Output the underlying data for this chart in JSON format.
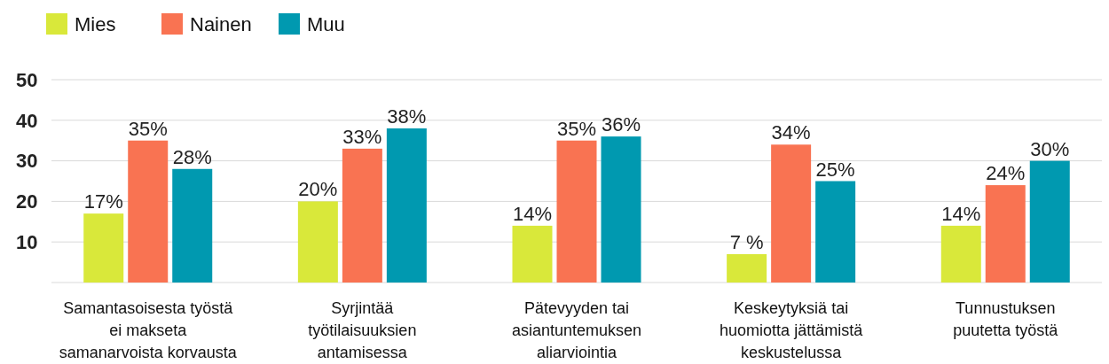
{
  "chart_data": {
    "type": "bar",
    "categories": [
      "Samantasoisesta työstä\nei makseta\nsamanarvoista korvausta",
      "Syrjintää\ntyötilaisuuksien\nantamisessa",
      "Pätevyyden tai\nasiantuntemuksen\naliarviointia",
      "Keskeytyksiä tai\nhuomiotta jättämistä\nkeskustelussa",
      "Tunnustuksen\npuutetta työstä"
    ],
    "series": [
      {
        "name": "Mies",
        "color": "#d9e83a",
        "values": [
          17,
          20,
          14,
          7,
          14
        ],
        "value_labels": [
          "17%",
          "20%",
          "14%",
          "7 %",
          "14%"
        ]
      },
      {
        "name": "Nainen",
        "color": "#f97352",
        "values": [
          35,
          33,
          35,
          34,
          24
        ],
        "value_labels": [
          "35%",
          "33%",
          "35%",
          "34%",
          "24%"
        ]
      },
      {
        "name": "Muu",
        "color": "#0099b0",
        "values": [
          28,
          38,
          36,
          25,
          30
        ],
        "value_labels": [
          "28%",
          "38%",
          "36%",
          "25%",
          "30%"
        ]
      }
    ],
    "ylim": [
      0,
      50
    ],
    "yticks": [
      10,
      20,
      30,
      40,
      50
    ],
    "grid": "y",
    "legend": "top left"
  }
}
